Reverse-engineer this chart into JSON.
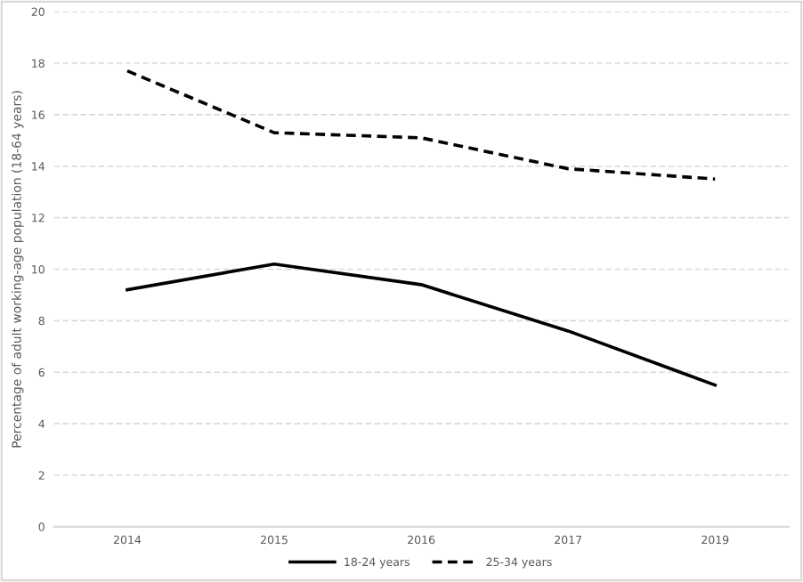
{
  "chart_data": {
    "type": "line",
    "ylabel": "Percentage of adult working-age population (18-64 years)",
    "categories": [
      "2014",
      "2015",
      "2016",
      "2017",
      "2019"
    ],
    "series": [
      {
        "name": "18-24 years",
        "color": "#000000",
        "line_style": "solid",
        "values": [
          9.2,
          10.2,
          9.4,
          7.6,
          5.5
        ]
      },
      {
        "name": "25-34 years",
        "color": "#000000",
        "line_style": "dashed",
        "values": [
          17.7,
          15.3,
          15.1,
          13.9,
          13.5
        ]
      }
    ],
    "ylim": [
      0,
      20
    ],
    "yticks": [
      0,
      2,
      4,
      6,
      8,
      10,
      12,
      14,
      16,
      18,
      20
    ],
    "grid": "y",
    "legend": "bottom",
    "marker": "none"
  }
}
